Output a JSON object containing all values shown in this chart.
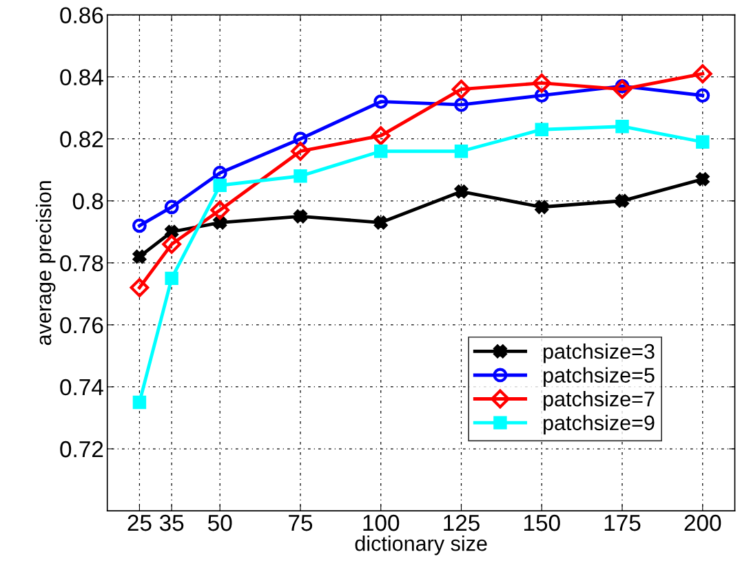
{
  "chart_data": {
    "type": "line",
    "xlabel": "dictionary size",
    "ylabel": "average precision",
    "x": [
      25,
      35,
      50,
      75,
      100,
      125,
      150,
      175,
      200
    ],
    "xlim": [
      15,
      210
    ],
    "xticks": [
      25,
      35,
      50,
      75,
      100,
      125,
      150,
      175,
      200
    ],
    "ylim": [
      0.7,
      0.86
    ],
    "yticks": [
      0.72,
      0.74,
      0.76,
      0.78,
      {
        "value": 0.8,
        "label": "0.8"
      },
      0.82,
      0.84,
      0.86
    ],
    "grid": true,
    "legend": "bottom right",
    "line_style": "solid",
    "series": [
      {
        "name": "patchsize=3",
        "color": "#000000",
        "marker": "cross",
        "values": [
          0.782,
          0.79,
          0.793,
          0.795,
          0.793,
          0.803,
          0.798,
          0.8,
          0.807
        ]
      },
      {
        "name": "patchsize=5",
        "color": "#0000ff",
        "marker": "circle",
        "values": [
          0.792,
          0.798,
          0.809,
          0.82,
          0.832,
          0.831,
          0.834,
          0.837,
          0.834
        ]
      },
      {
        "name": "patchsize=7",
        "color": "#ff0000",
        "marker": "diamond",
        "values": [
          0.772,
          0.786,
          0.797,
          0.816,
          0.821,
          0.836,
          0.838,
          0.836,
          0.841
        ]
      },
      {
        "name": "patchsize=9",
        "color": "#00ffff",
        "marker": "square",
        "values": [
          0.735,
          0.775,
          0.805,
          0.808,
          0.816,
          0.816,
          0.823,
          0.824,
          0.819
        ]
      }
    ]
  }
}
